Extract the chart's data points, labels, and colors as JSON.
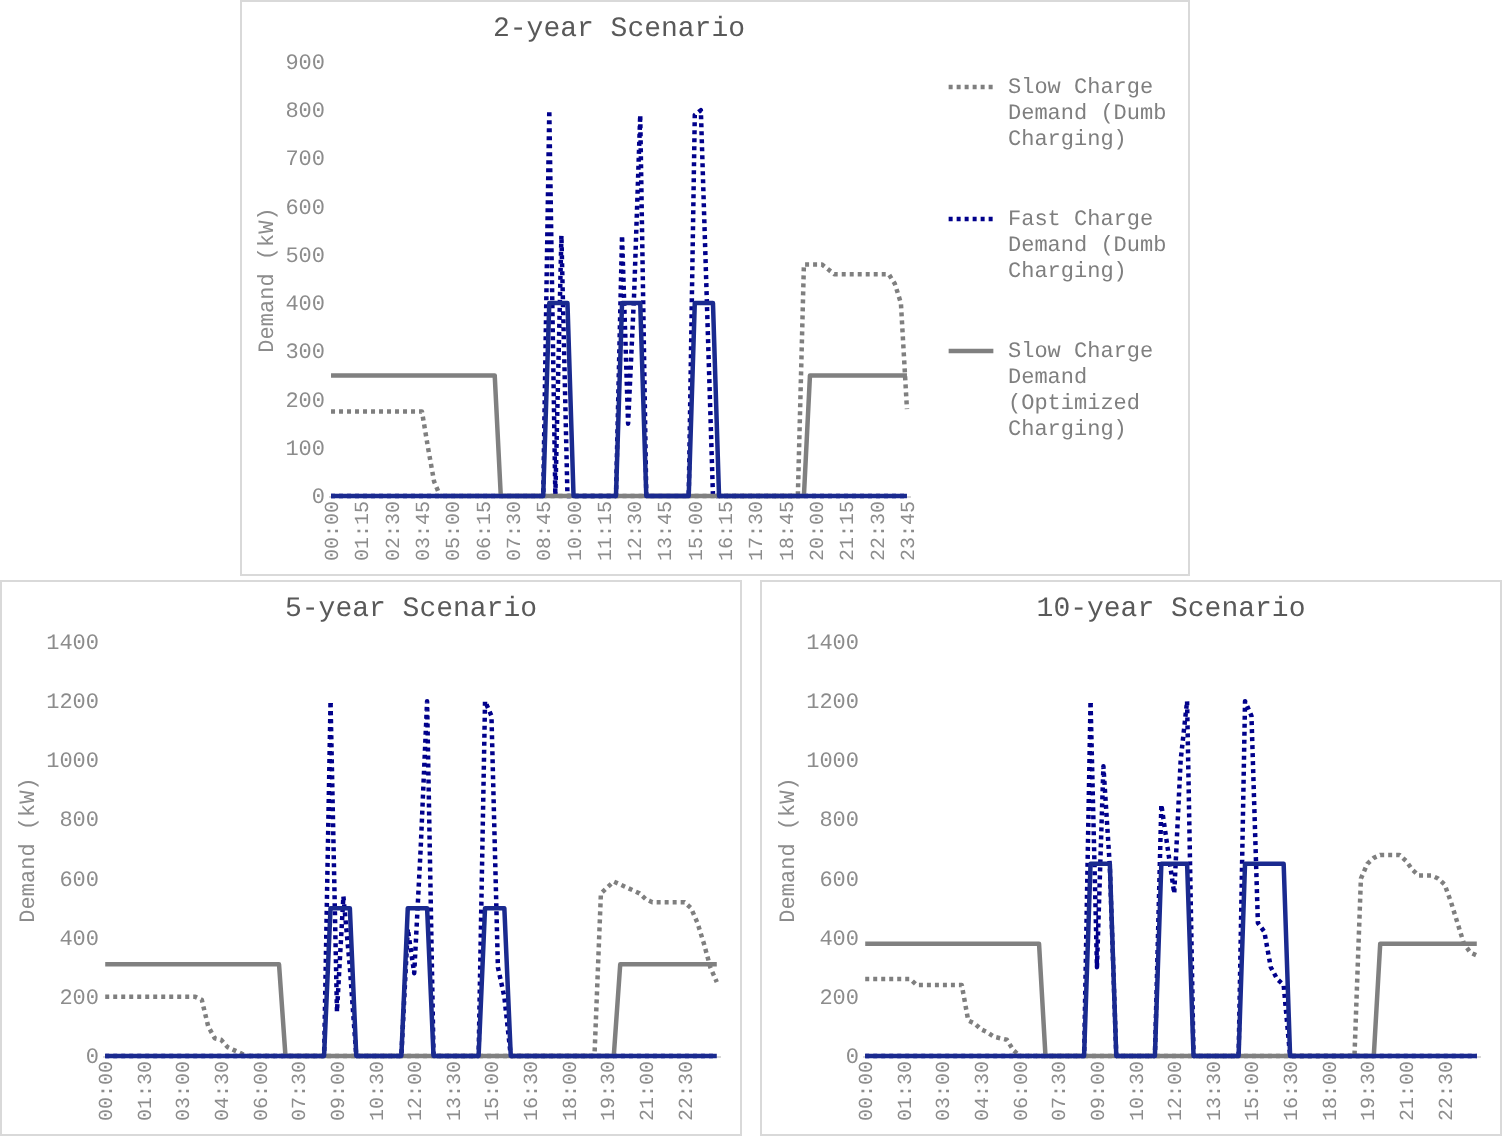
{
  "chart_data": [
    {
      "type": "line",
      "title": "2-year Scenario",
      "ylabel": "Demand (kW)",
      "legend": "right",
      "categories": [
        "00:00",
        null,
        null,
        null,
        null,
        "01:15",
        null,
        null,
        null,
        null,
        "02:30",
        null,
        null,
        null,
        null,
        "03:45",
        null,
        null,
        null,
        null,
        "05:00",
        null,
        null,
        null,
        null,
        "06:15",
        null,
        null,
        null,
        null,
        "07:30",
        null,
        null,
        null,
        null,
        "08:45",
        null,
        null,
        null,
        null,
        "10:00",
        null,
        null,
        null,
        null,
        "11:15",
        null,
        null,
        null,
        null,
        "12:30",
        null,
        null,
        null,
        null,
        "13:45",
        null,
        null,
        null,
        null,
        "15:00",
        null,
        null,
        null,
        null,
        "16:15",
        null,
        null,
        null,
        null,
        "17:30",
        null,
        null,
        null,
        null,
        "18:45",
        null,
        null,
        null,
        null,
        "20:00",
        null,
        null,
        null,
        null,
        "21:15",
        null,
        null,
        null,
        null,
        "22:30",
        null,
        null,
        null,
        null,
        "23:45"
      ],
      "ylim": [
        0,
        900
      ],
      "yticks": [
        0,
        100,
        200,
        300,
        400,
        500,
        600,
        700,
        800,
        900
      ],
      "series": [
        {
          "name": "Slow Charge Demand (Dumb Charging)",
          "color": "#7f7f7f",
          "line_style": "dotted",
          "values": [
            175,
            175,
            175,
            175,
            175,
            175,
            175,
            175,
            175,
            175,
            175,
            175,
            175,
            175,
            175,
            175,
            100,
            30,
            0,
            0,
            0,
            0,
            0,
            0,
            0,
            0,
            0,
            0,
            0,
            0,
            0,
            0,
            0,
            0,
            0,
            0,
            0,
            0,
            0,
            0,
            0,
            0,
            0,
            0,
            0,
            0,
            0,
            0,
            0,
            0,
            0,
            0,
            0,
            0,
            0,
            0,
            0,
            0,
            0,
            0,
            0,
            0,
            0,
            0,
            0,
            0,
            0,
            0,
            0,
            0,
            0,
            0,
            0,
            0,
            0,
            0,
            0,
            0,
            480,
            480,
            480,
            480,
            470,
            460,
            460,
            460,
            460,
            460,
            460,
            460,
            460,
            460,
            460,
            440,
            400,
            180
          ]
        },
        {
          "name": "Fast Charge Demand (Dumb Charging)",
          "color": "#00008b",
          "line_style": "dotted",
          "values": [
            0,
            0,
            0,
            0,
            0,
            0,
            0,
            0,
            0,
            0,
            0,
            0,
            0,
            0,
            0,
            0,
            0,
            0,
            0,
            0,
            0,
            0,
            0,
            0,
            0,
            0,
            0,
            0,
            0,
            0,
            0,
            0,
            0,
            0,
            0,
            0,
            800,
            0,
            540,
            0,
            0,
            0,
            0,
            0,
            0,
            0,
            0,
            0,
            540,
            150,
            420,
            790,
            0,
            0,
            0,
            0,
            0,
            0,
            0,
            0,
            790,
            800,
            400,
            0,
            0,
            0,
            0,
            0,
            0,
            0,
            0,
            0,
            0,
            0,
            0,
            0,
            0,
            0,
            0,
            0,
            0,
            0,
            0,
            0,
            0,
            0,
            0,
            0,
            0,
            0,
            0,
            0,
            0,
            0,
            0,
            0
          ]
        },
        {
          "name": "Slow Charge Demand (Optimized Charging)",
          "color": "#808080",
          "line_style": "solid",
          "values": [
            250,
            250,
            250,
            250,
            250,
            250,
            250,
            250,
            250,
            250,
            250,
            250,
            250,
            250,
            250,
            250,
            250,
            250,
            250,
            250,
            250,
            250,
            250,
            250,
            250,
            250,
            250,
            250,
            0,
            0,
            0,
            0,
            0,
            0,
            0,
            0,
            0,
            0,
            0,
            0,
            0,
            0,
            0,
            0,
            0,
            0,
            0,
            0,
            0,
            0,
            0,
            0,
            0,
            0,
            0,
            0,
            0,
            0,
            0,
            0,
            0,
            0,
            0,
            0,
            0,
            0,
            0,
            0,
            0,
            0,
            0,
            0,
            0,
            0,
            0,
            0,
            0,
            0,
            0,
            250,
            250,
            250,
            250,
            250,
            250,
            250,
            250,
            250,
            250,
            250,
            250,
            250,
            250,
            250,
            250,
            250
          ]
        },
        {
          "color": "#1a2a8f",
          "line_style": "solid",
          "values": [
            0,
            0,
            0,
            0,
            0,
            0,
            0,
            0,
            0,
            0,
            0,
            0,
            0,
            0,
            0,
            0,
            0,
            0,
            0,
            0,
            0,
            0,
            0,
            0,
            0,
            0,
            0,
            0,
            0,
            0,
            0,
            0,
            0,
            0,
            0,
            0,
            400,
            400,
            400,
            400,
            0,
            0,
            0,
            0,
            0,
            0,
            0,
            0,
            400,
            400,
            400,
            400,
            0,
            0,
            0,
            0,
            0,
            0,
            0,
            0,
            400,
            400,
            400,
            400,
            0,
            0,
            0,
            0,
            0,
            0,
            0,
            0,
            0,
            0,
            0,
            0,
            0,
            0,
            0,
            0,
            0,
            0,
            0,
            0,
            0,
            0,
            0,
            0,
            0,
            0,
            0,
            0,
            0,
            0,
            0,
            0
          ]
        }
      ]
    },
    {
      "type": "line",
      "title": "5-year Scenario",
      "ylabel": "Demand (kW)",
      "categories": [
        "00:00",
        null,
        null,
        null,
        null,
        null,
        "01:30",
        null,
        null,
        null,
        null,
        null,
        "03:00",
        null,
        null,
        null,
        null,
        null,
        "04:30",
        null,
        null,
        null,
        null,
        null,
        "06:00",
        null,
        null,
        null,
        null,
        null,
        "07:30",
        null,
        null,
        null,
        null,
        null,
        "09:00",
        null,
        null,
        null,
        null,
        null,
        "10:30",
        null,
        null,
        null,
        null,
        null,
        "12:00",
        null,
        null,
        null,
        null,
        null,
        "13:30",
        null,
        null,
        null,
        null,
        null,
        "15:00",
        null,
        null,
        null,
        null,
        null,
        "16:30",
        null,
        null,
        null,
        null,
        null,
        "18:00",
        null,
        null,
        null,
        null,
        null,
        "19:30",
        null,
        null,
        null,
        null,
        null,
        "21:00",
        null,
        null,
        null,
        null,
        null,
        "22:30",
        null,
        null,
        null,
        null,
        null
      ],
      "ylim": [
        0,
        1400
      ],
      "yticks": [
        0,
        200,
        400,
        600,
        800,
        1000,
        1200,
        1400
      ],
      "series": [
        {
          "color": "#7f7f7f",
          "line_style": "dotted",
          "values": [
            200,
            200,
            200,
            200,
            200,
            200,
            200,
            200,
            200,
            200,
            200,
            200,
            200,
            200,
            200,
            190,
            100,
            60,
            55,
            30,
            20,
            10,
            0,
            0,
            0,
            0,
            0,
            0,
            0,
            0,
            0,
            0,
            0,
            0,
            0,
            0,
            0,
            0,
            0,
            0,
            0,
            0,
            0,
            0,
            0,
            0,
            0,
            0,
            0,
            0,
            0,
            0,
            0,
            0,
            0,
            0,
            0,
            0,
            0,
            0,
            0,
            0,
            0,
            0,
            0,
            0,
            0,
            0,
            0,
            0,
            0,
            0,
            0,
            0,
            0,
            0,
            0,
            550,
            570,
            590,
            580,
            570,
            560,
            550,
            530,
            520,
            520,
            520,
            520,
            520,
            520,
            500,
            450,
            380,
            300,
            250
          ]
        },
        {
          "color": "#00008b",
          "line_style": "dotted",
          "values": [
            0,
            0,
            0,
            0,
            0,
            0,
            0,
            0,
            0,
            0,
            0,
            0,
            0,
            0,
            0,
            0,
            0,
            0,
            0,
            0,
            0,
            0,
            0,
            0,
            0,
            0,
            0,
            0,
            0,
            0,
            0,
            0,
            0,
            0,
            0,
            1200,
            150,
            540,
            300,
            0,
            0,
            0,
            0,
            0,
            0,
            0,
            0,
            430,
            280,
            700,
            1200,
            0,
            0,
            0,
            0,
            0,
            0,
            0,
            0,
            1200,
            1150,
            300,
            200,
            0,
            0,
            0,
            0,
            0,
            0,
            0,
            0,
            0,
            0,
            0,
            0,
            0,
            0,
            0,
            0,
            0,
            0,
            0,
            0,
            0,
            0,
            0,
            0,
            0,
            0,
            0,
            0,
            0,
            0,
            0,
            0,
            0
          ]
        },
        {
          "color": "#808080",
          "line_style": "solid",
          "values": [
            310,
            310,
            310,
            310,
            310,
            310,
            310,
            310,
            310,
            310,
            310,
            310,
            310,
            310,
            310,
            310,
            310,
            310,
            310,
            310,
            310,
            310,
            310,
            310,
            310,
            310,
            310,
            310,
            0,
            0,
            0,
            0,
            0,
            0,
            0,
            0,
            0,
            0,
            0,
            0,
            0,
            0,
            0,
            0,
            0,
            0,
            0,
            0,
            0,
            0,
            0,
            0,
            0,
            0,
            0,
            0,
            0,
            0,
            0,
            0,
            0,
            0,
            0,
            0,
            0,
            0,
            0,
            0,
            0,
            0,
            0,
            0,
            0,
            0,
            0,
            0,
            0,
            0,
            0,
            0,
            310,
            310,
            310,
            310,
            310,
            310,
            310,
            310,
            310,
            310,
            310,
            310,
            310,
            310,
            310,
            310
          ]
        },
        {
          "color": "#1a2a8f",
          "line_style": "solid",
          "values": [
            0,
            0,
            0,
            0,
            0,
            0,
            0,
            0,
            0,
            0,
            0,
            0,
            0,
            0,
            0,
            0,
            0,
            0,
            0,
            0,
            0,
            0,
            0,
            0,
            0,
            0,
            0,
            0,
            0,
            0,
            0,
            0,
            0,
            0,
            0,
            500,
            500,
            500,
            500,
            0,
            0,
            0,
            0,
            0,
            0,
            0,
            0,
            500,
            500,
            500,
            500,
            0,
            0,
            0,
            0,
            0,
            0,
            0,
            0,
            500,
            500,
            500,
            500,
            0,
            0,
            0,
            0,
            0,
            0,
            0,
            0,
            0,
            0,
            0,
            0,
            0,
            0,
            0,
            0,
            0,
            0,
            0,
            0,
            0,
            0,
            0,
            0,
            0,
            0,
            0,
            0,
            0,
            0,
            0,
            0,
            0
          ]
        }
      ]
    },
    {
      "type": "line",
      "title": "10-year Scenario",
      "ylabel": "Demand (kW)",
      "categories": [
        "00:00",
        null,
        null,
        null,
        null,
        null,
        "01:30",
        null,
        null,
        null,
        null,
        null,
        "03:00",
        null,
        null,
        null,
        null,
        null,
        "04:30",
        null,
        null,
        null,
        null,
        null,
        "06:00",
        null,
        null,
        null,
        null,
        null,
        "07:30",
        null,
        null,
        null,
        null,
        null,
        "09:00",
        null,
        null,
        null,
        null,
        null,
        "10:30",
        null,
        null,
        null,
        null,
        null,
        "12:00",
        null,
        null,
        null,
        null,
        null,
        "13:30",
        null,
        null,
        null,
        null,
        null,
        "15:00",
        null,
        null,
        null,
        null,
        null,
        "16:30",
        null,
        null,
        null,
        null,
        null,
        "18:00",
        null,
        null,
        null,
        null,
        null,
        "19:30",
        null,
        null,
        null,
        null,
        null,
        "21:00",
        null,
        null,
        null,
        null,
        null,
        "22:30",
        null,
        null,
        null,
        null,
        null
      ],
      "ylim": [
        0,
        1400
      ],
      "yticks": [
        0,
        200,
        400,
        600,
        800,
        1000,
        1200,
        1400
      ],
      "series": [
        {
          "color": "#7f7f7f",
          "line_style": "dotted",
          "values": [
            260,
            260,
            260,
            260,
            260,
            260,
            260,
            260,
            240,
            240,
            240,
            240,
            240,
            240,
            240,
            240,
            120,
            110,
            90,
            80,
            65,
            60,
            55,
            20,
            0,
            0,
            0,
            0,
            0,
            0,
            0,
            0,
            0,
            0,
            0,
            0,
            0,
            0,
            0,
            0,
            0,
            0,
            0,
            0,
            0,
            0,
            0,
            0,
            0,
            0,
            0,
            0,
            0,
            0,
            0,
            0,
            0,
            0,
            0,
            0,
            0,
            0,
            0,
            0,
            0,
            0,
            0,
            0,
            0,
            0,
            0,
            0,
            0,
            0,
            0,
            0,
            0,
            600,
            650,
            670,
            680,
            680,
            680,
            680,
            660,
            630,
            610,
            610,
            610,
            600,
            580,
            520,
            450,
            380,
            350,
            340
          ]
        },
        {
          "color": "#00008b",
          "line_style": "dotted",
          "values": [
            0,
            0,
            0,
            0,
            0,
            0,
            0,
            0,
            0,
            0,
            0,
            0,
            0,
            0,
            0,
            0,
            0,
            0,
            0,
            0,
            0,
            0,
            0,
            0,
            0,
            0,
            0,
            0,
            0,
            0,
            0,
            0,
            0,
            0,
            0,
            1200,
            300,
            980,
            640,
            0,
            0,
            0,
            0,
            0,
            0,
            0,
            850,
            700,
            550,
            1000,
            1200,
            0,
            0,
            0,
            0,
            0,
            0,
            0,
            0,
            1200,
            1150,
            450,
            420,
            300,
            260,
            240,
            0,
            0,
            0,
            0,
            0,
            0,
            0,
            0,
            0,
            0,
            0,
            0,
            0,
            0,
            0,
            0,
            0,
            0,
            0,
            0,
            0,
            0,
            0,
            0,
            0,
            0,
            0,
            0,
            0,
            0
          ]
        },
        {
          "color": "#808080",
          "line_style": "solid",
          "values": [
            380,
            380,
            380,
            380,
            380,
            380,
            380,
            380,
            380,
            380,
            380,
            380,
            380,
            380,
            380,
            380,
            380,
            380,
            380,
            380,
            380,
            380,
            380,
            380,
            380,
            380,
            380,
            380,
            0,
            0,
            0,
            0,
            0,
            0,
            0,
            0,
            0,
            0,
            0,
            0,
            0,
            0,
            0,
            0,
            0,
            0,
            0,
            0,
            0,
            0,
            0,
            0,
            0,
            0,
            0,
            0,
            0,
            0,
            0,
            0,
            0,
            0,
            0,
            0,
            0,
            0,
            0,
            0,
            0,
            0,
            0,
            0,
            0,
            0,
            0,
            0,
            0,
            0,
            0,
            0,
            380,
            380,
            380,
            380,
            380,
            380,
            380,
            380,
            380,
            380,
            380,
            380,
            380,
            380,
            380,
            380
          ]
        },
        {
          "color": "#1a2a8f",
          "line_style": "solid",
          "values": [
            0,
            0,
            0,
            0,
            0,
            0,
            0,
            0,
            0,
            0,
            0,
            0,
            0,
            0,
            0,
            0,
            0,
            0,
            0,
            0,
            0,
            0,
            0,
            0,
            0,
            0,
            0,
            0,
            0,
            0,
            0,
            0,
            0,
            0,
            0,
            650,
            650,
            650,
            650,
            0,
            0,
            0,
            0,
            0,
            0,
            0,
            650,
            650,
            650,
            650,
            650,
            0,
            0,
            0,
            0,
            0,
            0,
            0,
            0,
            650,
            650,
            650,
            650,
            650,
            650,
            650,
            0,
            0,
            0,
            0,
            0,
            0,
            0,
            0,
            0,
            0,
            0,
            0,
            0,
            0,
            0,
            0,
            0,
            0,
            0,
            0,
            0,
            0,
            0,
            0,
            0,
            0,
            0,
            0,
            0,
            0
          ]
        }
      ]
    }
  ]
}
